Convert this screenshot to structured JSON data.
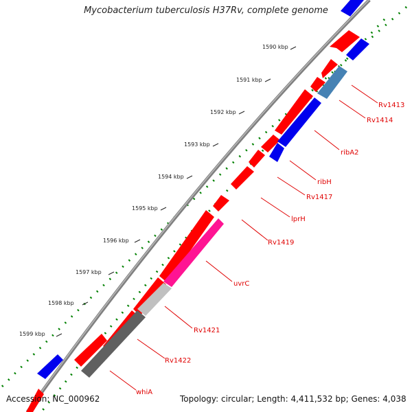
{
  "title": "Mycobacterium tuberculosis H37Rv, complete genome",
  "accession": "Accession: NC_000962",
  "summary": "Topology: circular; Length: 4,411,532 bp; Genes: 4,038",
  "tick_labels": [
    "1590 kbp",
    "1591 kbp",
    "1592 kbp",
    "1593 kbp",
    "1594 kbp",
    "1595 kbp",
    "1596 kbp",
    "1597 kbp",
    "1598 kbp",
    "1599 kbp"
  ],
  "gene_labels": [
    "Rv1413",
    "Rv1414",
    "ribA2",
    "ribH",
    "Rv1417",
    "lprH",
    "Rv1419",
    "uvrC",
    "Rv1421",
    "Rv1422",
    "whiA"
  ],
  "colors": {
    "forward_cds": "#ff0000",
    "reverse_cds": "#0000ee",
    "backbone": "#808080",
    "gc_dots": "#008000",
    "label": "#e00000",
    "steelblue": "#4682b4",
    "magenta": "#ff1493",
    "light_gray": "#c0c0c0",
    "dark_gray": "#606060"
  }
}
